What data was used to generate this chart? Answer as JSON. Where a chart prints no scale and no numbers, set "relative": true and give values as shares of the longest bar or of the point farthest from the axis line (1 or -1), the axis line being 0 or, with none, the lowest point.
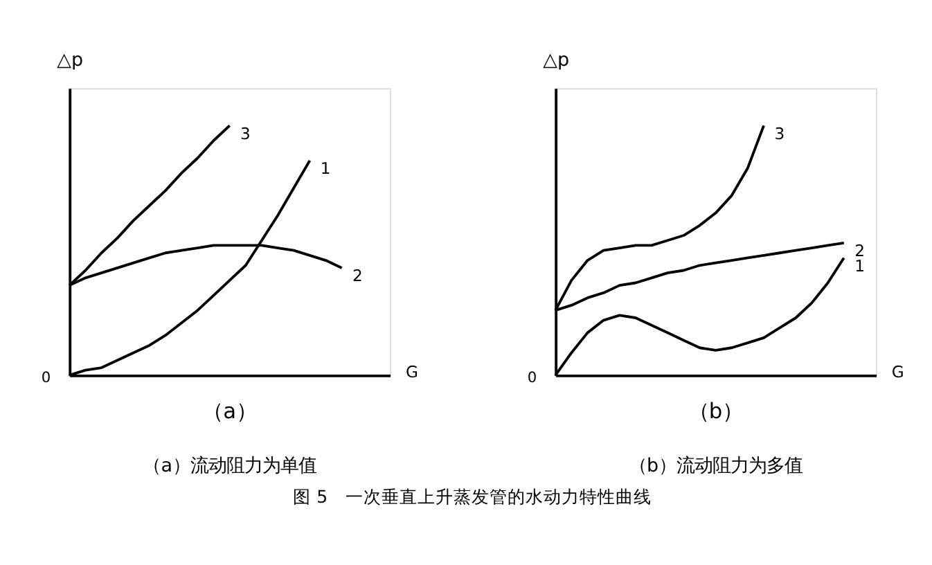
{
  "chart_data": [
    {
      "type": "line",
      "relative": true,
      "title": "（a）",
      "subtitle": "（a）流动阻力为单值",
      "xlabel": "G",
      "ylabel": "△p",
      "tick_labels": false,
      "grid": false,
      "annotations": [
        "0",
        "图 5　一次垂直上升蒸发管的水动力特性曲线"
      ],
      "categories": [
        null,
        null,
        null,
        null,
        null,
        null,
        null,
        null,
        null,
        null,
        null,
        null,
        null,
        null,
        null,
        null,
        null,
        null,
        null,
        null
      ],
      "series": [
        {
          "name": "1",
          "color": "#000000",
          "values": [
            0,
            0.02,
            0.03,
            0.06,
            0.09,
            0.12,
            0.16,
            0.21,
            0.26,
            0.32,
            0.38,
            0.44,
            0.54,
            0.64,
            0.75,
            0.86,
            null,
            null,
            null,
            null
          ]
        },
        {
          "name": "2",
          "color": "#000000",
          "values": [
            0.36,
            0.39,
            0.41,
            0.43,
            0.45,
            0.47,
            0.49,
            0.5,
            0.51,
            0.52,
            0.52,
            0.52,
            0.52,
            0.51,
            0.5,
            0.48,
            0.46,
            0.43,
            null,
            null
          ]
        },
        {
          "name": "3",
          "color": "#000000",
          "values": [
            0.36,
            0.42,
            0.49,
            0.55,
            0.62,
            0.68,
            0.74,
            0.81,
            0.87,
            0.94,
            1,
            null,
            null,
            null,
            null,
            null,
            null,
            null,
            null,
            null
          ]
        }
      ]
    },
    {
      "type": "line",
      "relative": true,
      "title": "（b）",
      "subtitle": "（b）流动阻力为多值",
      "xlabel": "G",
      "ylabel": "△p",
      "tick_labels": false,
      "grid": false,
      "annotations": [
        "0"
      ],
      "categories": [
        null,
        null,
        null,
        null,
        null,
        null,
        null,
        null,
        null,
        null,
        null,
        null,
        null,
        null,
        null,
        null,
        null,
        null,
        null,
        null
      ],
      "series": [
        {
          "name": "1",
          "color": "#000000",
          "values": [
            0,
            0.09,
            0.17,
            0.22,
            0.24,
            0.23,
            0.2,
            0.17,
            0.14,
            0.11,
            0.1,
            0.11,
            0.13,
            0.15,
            0.19,
            0.23,
            0.29,
            0.37,
            0.47,
            null
          ]
        },
        {
          "name": "2",
          "color": "#000000",
          "values": [
            0.26,
            0.28,
            0.31,
            0.33,
            0.36,
            0.37,
            0.39,
            0.41,
            0.42,
            0.44,
            0.45,
            0.46,
            0.47,
            0.48,
            0.49,
            0.5,
            0.51,
            0.52,
            0.53,
            null
          ]
        },
        {
          "name": "3",
          "color": "#000000",
          "values": [
            0.26,
            0.38,
            0.46,
            0.5,
            0.51,
            0.52,
            0.52,
            0.54,
            0.56,
            0.6,
            0.65,
            0.72,
            0.83,
            1,
            null,
            null,
            null,
            null,
            null,
            null
          ]
        }
      ]
    }
  ]
}
